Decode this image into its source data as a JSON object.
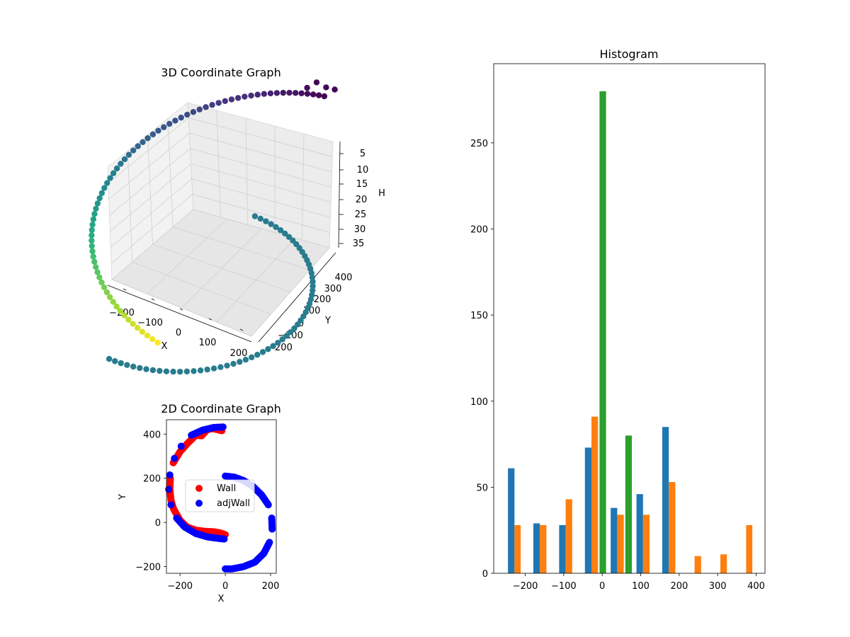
{
  "chart_data": [
    {
      "type": "scatter3d",
      "title": "3D Coordinate Graph",
      "xlabel": "X",
      "ylabel": "Y",
      "zlabel": "H",
      "x_ticks": [
        "−200",
        "−100",
        "0",
        "100",
        "200"
      ],
      "y_ticks": [
        "−200",
        "−100",
        "0",
        "100",
        "200",
        "300",
        "400"
      ],
      "z_ticks": [
        "5",
        "10",
        "15",
        "20",
        "25",
        "30",
        "35"
      ],
      "z_inverted": true,
      "colormap": "viridis",
      "grid": true,
      "segments": [
        {
          "shape": "arc",
          "description": "semicircle centre (0,0), radius 210, angle -90 to 90 deg",
          "h": 27
        },
        {
          "shape": "arc",
          "description": "semicircle centre (0,170), radius 240, angle 90 to 270 deg",
          "h_from": 12,
          "h_to": 36
        }
      ]
    },
    {
      "type": "scatter",
      "title": "2D Coordinate Graph",
      "xlabel": "X",
      "ylabel": "Y",
      "xlim": [
        -260,
        225
      ],
      "ylim": [
        -230,
        465
      ],
      "x_ticks": [
        "−200",
        "0",
        "200"
      ],
      "y_ticks": [
        "−200",
        "0",
        "200",
        "400"
      ],
      "legend": "center",
      "series": [
        {
          "name": "Wall",
          "color": "#ff0000",
          "shape": "inner C-curve",
          "points": [
            [
              -15,
              415
            ],
            [
              -35,
              420
            ],
            [
              -55,
              425
            ],
            [
              -80,
              420
            ],
            [
              -105,
              392
            ],
            [
              -130,
              395
            ],
            [
              -165,
              360
            ],
            [
              -200,
              320
            ],
            [
              -230,
              270
            ],
            [
              -243,
              200
            ],
            [
              -245,
              150
            ],
            [
              -240,
              100
            ],
            [
              -228,
              60
            ],
            [
              -200,
              10
            ],
            [
              -170,
              -20
            ],
            [
              -130,
              -35
            ],
            [
              -90,
              -40
            ],
            [
              -50,
              -42
            ],
            [
              -20,
              -48
            ],
            [
              0,
              -55
            ]
          ]
        },
        {
          "name": "adjWall",
          "color": "#0000ff",
          "shape": "two semicircles",
          "points": [
            [
              -10,
              432
            ],
            [
              -50,
              430
            ],
            [
              -100,
              418
            ],
            [
              -150,
              395
            ],
            [
              -195,
              345
            ],
            [
              -225,
              290
            ],
            [
              -245,
              215
            ],
            [
              -250,
              150
            ],
            [
              -240,
              80
            ],
            [
              -215,
              20
            ],
            [
              -180,
              -20
            ],
            [
              -130,
              -50
            ],
            [
              -80,
              -65
            ],
            [
              -30,
              -72
            ],
            [
              -5,
              -75
            ],
            [
              0,
              210
            ],
            [
              40,
              205
            ],
            [
              80,
              190
            ],
            [
              120,
              165
            ],
            [
              160,
              125
            ],
            [
              190,
              80
            ],
            [
              205,
              20
            ],
            [
              207,
              -30
            ],
            [
              195,
              -90
            ],
            [
              170,
              -140
            ],
            [
              130,
              -180
            ],
            [
              80,
              -200
            ],
            [
              30,
              -210
            ],
            [
              0,
              -210
            ]
          ]
        }
      ]
    },
    {
      "type": "bar",
      "title": "Histogram",
      "xlim": [
        -282,
        423
      ],
      "ylim": [
        0,
        296
      ],
      "x_ticks": [
        -200,
        -100,
        0,
        100,
        200,
        300,
        400
      ],
      "y_ticks": [
        0,
        50,
        100,
        150,
        200,
        250
      ],
      "series": [
        {
          "color": "#1f77b4",
          "bins": [
            {
              "x0": -245,
              "x1": -228,
              "value": 61
            },
            {
              "x0": -179,
              "x1": -162,
              "value": 29
            },
            {
              "x0": -112,
              "x1": -95,
              "value": 28
            },
            {
              "x0": -45,
              "x1": -28,
              "value": 73
            },
            {
              "x0": 22,
              "x1": 39,
              "value": 38
            },
            {
              "x0": 89,
              "x1": 106,
              "value": 46
            },
            {
              "x0": 156,
              "x1": 173,
              "value": 85
            }
          ]
        },
        {
          "color": "#ff7f0e",
          "bins": [
            {
              "x0": -228,
              "x1": -212,
              "value": 28
            },
            {
              "x0": -162,
              "x1": -145,
              "value": 28
            },
            {
              "x0": -95,
              "x1": -78,
              "value": 43
            },
            {
              "x0": -28,
              "x1": -11,
              "value": 91
            },
            {
              "x0": 39,
              "x1": 56,
              "value": 34
            },
            {
              "x0": 106,
              "x1": 123,
              "value": 34
            },
            {
              "x0": 173,
              "x1": 190,
              "value": 53
            },
            {
              "x0": 240,
              "x1": 257,
              "value": 10
            },
            {
              "x0": 307,
              "x1": 324,
              "value": 11
            },
            {
              "x0": 374,
              "x1": 390,
              "value": 28
            }
          ]
        },
        {
          "color": "#2ca02c",
          "bins": [
            {
              "x0": -7,
              "x1": 10,
              "value": 280
            },
            {
              "x0": 60,
              "x1": 77,
              "value": 80
            }
          ]
        }
      ]
    }
  ]
}
